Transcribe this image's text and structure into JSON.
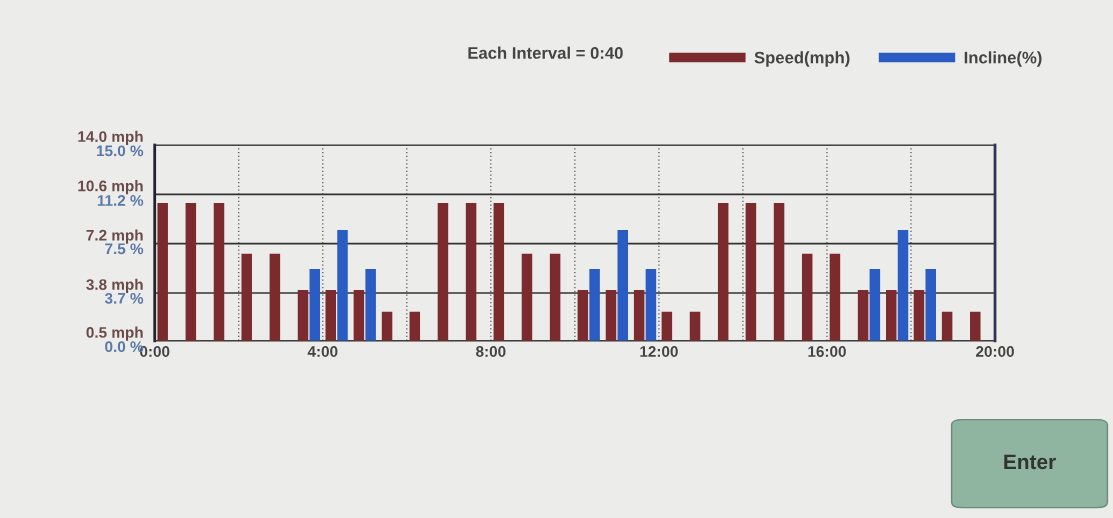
{
  "chart_data": {
    "type": "bar",
    "x": [
      0.33,
      1.0,
      1.67,
      2.33,
      3.0,
      3.67,
      4.33,
      5.0,
      5.67,
      6.33,
      7.0,
      7.67,
      8.33,
      9.0,
      9.67,
      10.33,
      11.0,
      11.67,
      12.33,
      13.0,
      13.67,
      14.33,
      15.0,
      15.67,
      16.33,
      17.0,
      17.67,
      18.33,
      19.0,
      19.67
    ],
    "series": [
      {
        "name": "Speed(mph)",
        "color": "#7b2a2e",
        "values": [
          10.0,
          10.0,
          10.0,
          6.5,
          6.5,
          4.0,
          4.0,
          4.0,
          2.5,
          2.5,
          10.0,
          10.0,
          10.0,
          6.5,
          6.5,
          4.0,
          4.0,
          4.0,
          2.5,
          2.5,
          10.0,
          10.0,
          10.0,
          6.5,
          6.5,
          4.0,
          4.0,
          4.0,
          2.5,
          2.5
        ]
      },
      {
        "name": "Incline(%)",
        "color": "#2a5cc4",
        "axis": "y2",
        "values": [
          0,
          0,
          0,
          0,
          0,
          5.5,
          8.5,
          5.5,
          0,
          0,
          0,
          0,
          0,
          0,
          0,
          5.5,
          8.5,
          5.5,
          0,
          0,
          0,
          0,
          0,
          0,
          0,
          5.5,
          8.5,
          5.5,
          0,
          0
        ]
      }
    ],
    "xlim": [
      0,
      20
    ],
    "xticks": [
      {
        "value": 0,
        "label": "0:00"
      },
      {
        "value": 2,
        "label": null
      },
      {
        "value": 4,
        "label": "4:00"
      },
      {
        "value": 6,
        "label": null
      },
      {
        "value": 8,
        "label": "8:00"
      },
      {
        "value": 10,
        "label": null
      },
      {
        "value": 12,
        "label": "12:00"
      },
      {
        "value": 14,
        "label": null
      },
      {
        "value": 16,
        "label": "16:00"
      },
      {
        "value": 18,
        "label": null
      },
      {
        "value": 20,
        "label": "20:00"
      }
    ],
    "ylim": [
      0.5,
      14.0
    ],
    "yticks": [
      {
        "value": 0.5,
        "label": "0.5 mph"
      },
      {
        "value": 3.8,
        "label": "3.8 mph"
      },
      {
        "value": 7.2,
        "label": "7.2 mph"
      },
      {
        "value": 10.6,
        "label": "10.6 mph"
      },
      {
        "value": 14.0,
        "label": "14.0 mph"
      }
    ],
    "y2lim": [
      0,
      15.0
    ],
    "y2ticks": [
      {
        "value": 0,
        "label": "0.0 %"
      },
      {
        "value": 3.7,
        "label": "3.7 %"
      },
      {
        "value": 7.5,
        "label": "7.5 %"
      },
      {
        "value": 11.2,
        "label": "11.2 %"
      },
      {
        "value": 15.0,
        "label": "15.0 %"
      }
    ],
    "annotations": [
      "Each Interval = 0:40",
      "Enter"
    ],
    "grid": true,
    "legend": "top right"
  }
}
